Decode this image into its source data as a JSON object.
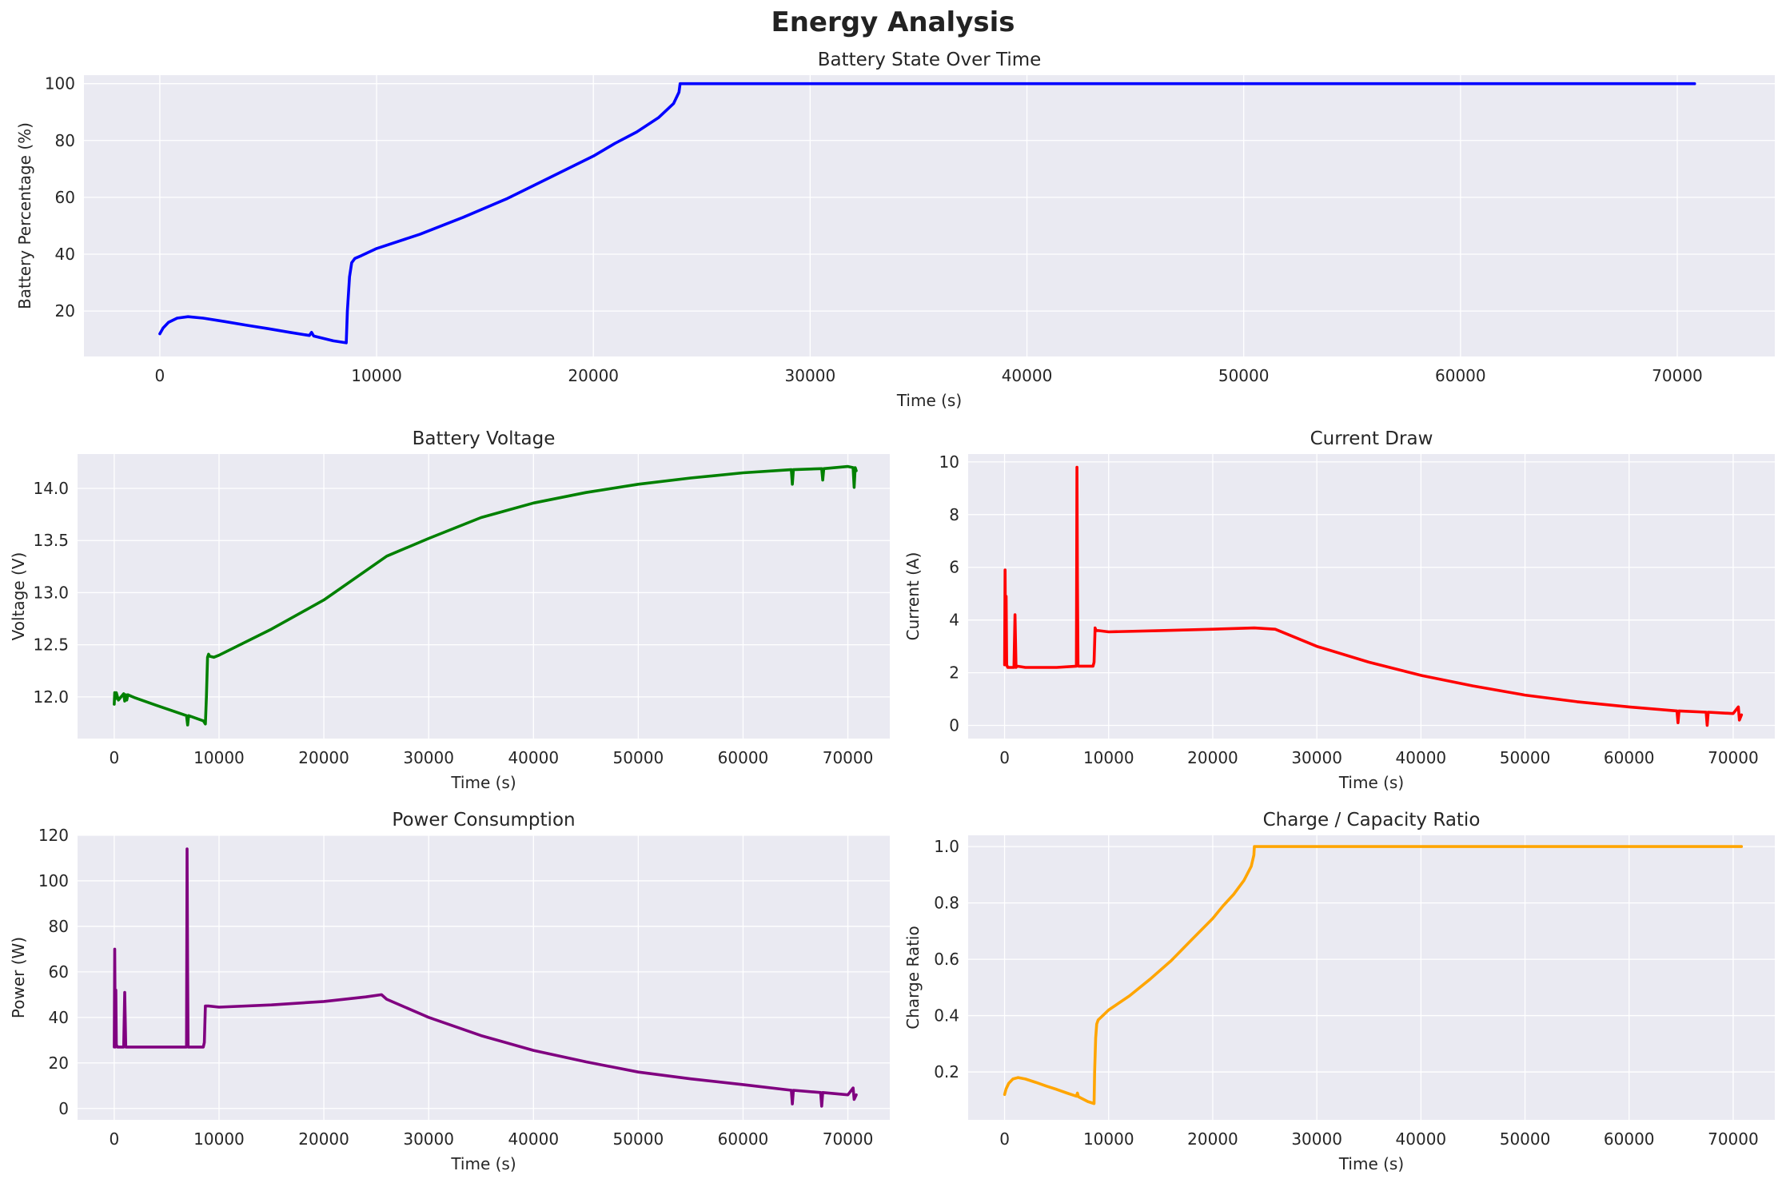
{
  "figure": {
    "title": "Energy Analysis",
    "panel_background": "#eaeaf2",
    "grid_color": "#ffffff"
  },
  "chart_data": [
    {
      "id": "battery",
      "type": "line",
      "title": "Battery State Over Time",
      "xlabel": "Time (s)",
      "ylabel": "Battery Percentage (%)",
      "xlim": [
        -3500,
        74500
      ],
      "ylim": [
        4,
        103
      ],
      "xticks": [
        0,
        10000,
        20000,
        30000,
        40000,
        50000,
        60000,
        70000
      ],
      "yticks": [
        20,
        40,
        60,
        80,
        100
      ],
      "ytick_labels": [
        "20",
        "40",
        "60",
        "80",
        "100"
      ],
      "grid": true,
      "series": [
        {
          "color": "#0000ff",
          "x": [
            0,
            150,
            400,
            800,
            1300,
            2000,
            3000,
            4000,
            5000,
            6000,
            6900,
            7000,
            7100,
            8000,
            8600,
            8650,
            8750,
            8850,
            9000,
            9300,
            10000,
            12000,
            14000,
            16000,
            18000,
            20000,
            21000,
            22000,
            23000,
            23700,
            23950,
            24000,
            30000,
            40000,
            50000,
            60000,
            70800
          ],
          "y": [
            12,
            14,
            16,
            17.5,
            18,
            17.5,
            16.3,
            15,
            13.8,
            12.5,
            11.4,
            12.5,
            11.2,
            9.5,
            8.8,
            20,
            32,
            37,
            38.5,
            39.5,
            42,
            47,
            53,
            59.5,
            67,
            74.5,
            79,
            83,
            88,
            93,
            97,
            100,
            100,
            100,
            100,
            100,
            100
          ]
        }
      ]
    },
    {
      "id": "voltage",
      "type": "line",
      "title": "Battery Voltage",
      "xlabel": "Time (s)",
      "ylabel": "Voltage (V)",
      "xlim": [
        -3500,
        74000
      ],
      "ylim": [
        11.6,
        14.33
      ],
      "xticks": [
        0,
        10000,
        20000,
        30000,
        40000,
        50000,
        60000,
        70000
      ],
      "yticks": [
        12.0,
        12.5,
        13.0,
        13.5,
        14.0
      ],
      "ytick_labels": [
        "12.0",
        "12.5",
        "13.0",
        "13.5",
        "14.0"
      ],
      "grid": true,
      "series": [
        {
          "color": "#008000",
          "x": [
            0,
            50,
            100,
            200,
            400,
            900,
            1000,
            1100,
            1200,
            1300,
            2000,
            4000,
            6900,
            7000,
            7100,
            8500,
            8700,
            8800,
            8900,
            9000,
            9100,
            9500,
            10000,
            15000,
            20000,
            26000,
            30000,
            35000,
            40000,
            45000,
            50000,
            55000,
            60000,
            64600,
            64700,
            64800,
            67500,
            67600,
            67700,
            70000,
            70500,
            70600,
            70700,
            70800
          ],
          "y": [
            11.93,
            12.04,
            11.98,
            12.04,
            11.97,
            12.03,
            11.96,
            12.02,
            11.97,
            12.02,
            11.99,
            11.92,
            11.82,
            11.73,
            11.82,
            11.77,
            11.74,
            12.0,
            12.38,
            12.41,
            12.39,
            12.38,
            12.4,
            12.65,
            12.93,
            13.35,
            13.52,
            13.72,
            13.86,
            13.96,
            14.04,
            14.1,
            14.15,
            14.18,
            14.04,
            14.18,
            14.19,
            14.08,
            14.19,
            14.21,
            14.2,
            14.01,
            14.2,
            14.17
          ]
        }
      ]
    },
    {
      "id": "current",
      "type": "line",
      "title": "Current Draw",
      "xlabel": "Time (s)",
      "ylabel": "Current (A)",
      "xlim": [
        -3500,
        74000
      ],
      "ylim": [
        -0.5,
        10.3
      ],
      "xticks": [
        0,
        10000,
        20000,
        30000,
        40000,
        50000,
        60000,
        70000
      ],
      "yticks": [
        0,
        2,
        4,
        6,
        8,
        10
      ],
      "ytick_labels": [
        "0",
        "2",
        "4",
        "6",
        "8",
        "10"
      ],
      "grid": true,
      "series": [
        {
          "color": "#ff0000",
          "x": [
            0,
            50,
            100,
            150,
            200,
            300,
            900,
            1000,
            1100,
            1200,
            2000,
            5000,
            6900,
            6950,
            7000,
            7050,
            7100,
            8500,
            8600,
            8700,
            8800,
            9000,
            10000,
            15000,
            20000,
            24000,
            26000,
            30000,
            35000,
            40000,
            45000,
            50000,
            55000,
            60000,
            64600,
            64700,
            64800,
            67400,
            67500,
            67600,
            70000,
            70500,
            70600,
            70800
          ],
          "y": [
            2.3,
            5.9,
            2.3,
            4.9,
            2.3,
            2.2,
            2.2,
            4.2,
            2.2,
            2.25,
            2.2,
            2.2,
            2.25,
            9.8,
            5.5,
            2.3,
            2.25,
            2.25,
            2.4,
            3.7,
            3.6,
            3.6,
            3.55,
            3.6,
            3.65,
            3.7,
            3.65,
            3.0,
            2.4,
            1.9,
            1.5,
            1.15,
            0.9,
            0.7,
            0.55,
            0.1,
            0.55,
            0.5,
            0.0,
            0.5,
            0.45,
            0.7,
            0.2,
            0.4
          ]
        }
      ]
    },
    {
      "id": "power",
      "type": "line",
      "title": "Power Consumption",
      "xlabel": "Time (s)",
      "ylabel": "Power (W)",
      "xlim": [
        -3500,
        74000
      ],
      "ylim": [
        -5,
        120
      ],
      "xticks": [
        0,
        10000,
        20000,
        30000,
        40000,
        50000,
        60000,
        70000
      ],
      "yticks": [
        0,
        20,
        40,
        60,
        80,
        100,
        120
      ],
      "ytick_labels": [
        "0",
        "20",
        "40",
        "60",
        "80",
        "100",
        "120"
      ],
      "grid": true,
      "series": [
        {
          "color": "#800080",
          "x": [
            0,
            50,
            100,
            150,
            200,
            300,
            900,
            1000,
            1100,
            1200,
            2000,
            5000,
            6900,
            6950,
            7000,
            7050,
            7100,
            8500,
            8600,
            8700,
            8800,
            9000,
            10000,
            15000,
            20000,
            24000,
            25500,
            26000,
            30000,
            35000,
            40000,
            45000,
            50000,
            55000,
            60000,
            64600,
            64700,
            64800,
            67400,
            67500,
            67600,
            70000,
            70500,
            70600,
            70800
          ],
          "y": [
            27,
            70,
            27,
            52,
            28,
            27,
            27,
            51,
            27,
            27,
            27,
            27,
            27,
            114,
            60,
            27,
            27,
            27,
            29,
            45,
            45,
            45,
            44.5,
            45.5,
            47,
            49,
            50,
            48,
            40,
            32,
            25.5,
            20.5,
            16,
            13,
            10.5,
            8,
            2,
            8,
            7,
            1,
            7,
            6,
            9,
            4,
            6
          ]
        }
      ]
    },
    {
      "id": "charge_ratio",
      "type": "line",
      "title": "Charge / Capacity Ratio",
      "xlabel": "Time (s)",
      "ylabel": "Charge Ratio",
      "xlim": [
        -3500,
        74000
      ],
      "ylim": [
        0.03,
        1.04
      ],
      "xticks": [
        0,
        10000,
        20000,
        30000,
        40000,
        50000,
        60000,
        70000
      ],
      "yticks": [
        0.2,
        0.4,
        0.6,
        0.8,
        1.0
      ],
      "ytick_labels": [
        "0.2",
        "0.4",
        "0.6",
        "0.8",
        "1.0"
      ],
      "grid": true,
      "series": [
        {
          "color": "#ffa500",
          "x": [
            0,
            150,
            400,
            800,
            1300,
            2000,
            3000,
            4000,
            5000,
            6000,
            6900,
            7000,
            7100,
            8000,
            8600,
            8650,
            8750,
            8850,
            9000,
            9300,
            10000,
            12000,
            14000,
            16000,
            18000,
            20000,
            21000,
            22000,
            23000,
            23700,
            23950,
            24000,
            30000,
            40000,
            50000,
            60000,
            70800
          ],
          "y": [
            0.12,
            0.14,
            0.16,
            0.175,
            0.18,
            0.175,
            0.163,
            0.15,
            0.138,
            0.125,
            0.114,
            0.125,
            0.112,
            0.095,
            0.088,
            0.2,
            0.32,
            0.37,
            0.385,
            0.395,
            0.42,
            0.47,
            0.53,
            0.595,
            0.67,
            0.745,
            0.79,
            0.83,
            0.88,
            0.93,
            0.97,
            1.0,
            1.0,
            1.0,
            1.0,
            1.0,
            1.0
          ]
        }
      ]
    }
  ]
}
